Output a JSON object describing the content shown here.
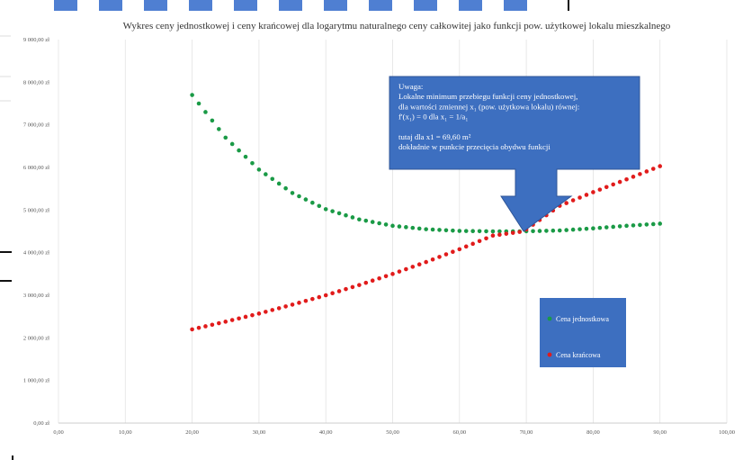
{
  "chart_data": {
    "type": "scatter",
    "title": "Wykres ceny jednostkowej i ceny krańcowej dla logarytmu naturalnego ceny całkowitej jako funkcji pow. użytkowej lokalu mieszkalnego",
    "xlim": [
      0,
      100
    ],
    "ylim": [
      0,
      9000
    ],
    "x_ticks": [
      "0,00",
      "10,00",
      "20,00",
      "30,00",
      "40,00",
      "50,00",
      "60,00",
      "70,00",
      "80,00",
      "90,00",
      "100,00"
    ],
    "y_ticks": [
      "0,00 zł",
      "1 000,00 zł",
      "2 000,00 zł",
      "3 000,00 zł",
      "4 000,00 zł",
      "5 000,00 zł",
      "6 000,00 zł",
      "7 000,00 zł",
      "8 000,00 zł",
      "9 000,00 zł"
    ],
    "grid": "vertical",
    "legend_placement": "bottom-right",
    "x_range": [
      20,
      90
    ],
    "point_step": 1,
    "series": [
      {
        "name": "Cena jednostkowa",
        "color": "#1a9a46",
        "x": [
          20,
          25,
          30,
          35,
          40,
          45,
          50,
          55,
          60,
          65,
          69.6,
          75,
          80,
          85,
          90
        ],
        "y": [
          7700,
          6700,
          5950,
          5400,
          5020,
          4780,
          4630,
          4550,
          4510,
          4500,
          4500,
          4520,
          4570,
          4630,
          4680
        ]
      },
      {
        "name": "Cena krańcowa",
        "color": "#e11b1b",
        "x": [
          20,
          25,
          30,
          35,
          40,
          45,
          50,
          55,
          60,
          65,
          69.6,
          75,
          80,
          85,
          90
        ],
        "y": [
          2200,
          2380,
          2570,
          2780,
          3000,
          3240,
          3500,
          3780,
          4080,
          4400,
          4500,
          5100,
          5420,
          5720,
          6030
        ]
      }
    ],
    "annotation": {
      "lines": [
        "Uwaga:",
        "Lokalne minimum przebiegu funkcji ceny jednostkowej,",
        "dla wartości zmiennej x₁ (pow. użytkowa lokalu) równej:",
        "f'(x₁) = 0  dla x₁ = 1/a₁",
        "",
        "tutaj dla x1 = 69,60 m²",
        "dokładnie w punkcie przecięcia obydwu funkcji"
      ],
      "target_x": 69.6,
      "target_y": 4500,
      "color": "#3d6fc0"
    },
    "legend": [
      "Cena jednostkowa",
      "Cena krańcowa"
    ],
    "legend_bg": "#3d6fc0"
  }
}
